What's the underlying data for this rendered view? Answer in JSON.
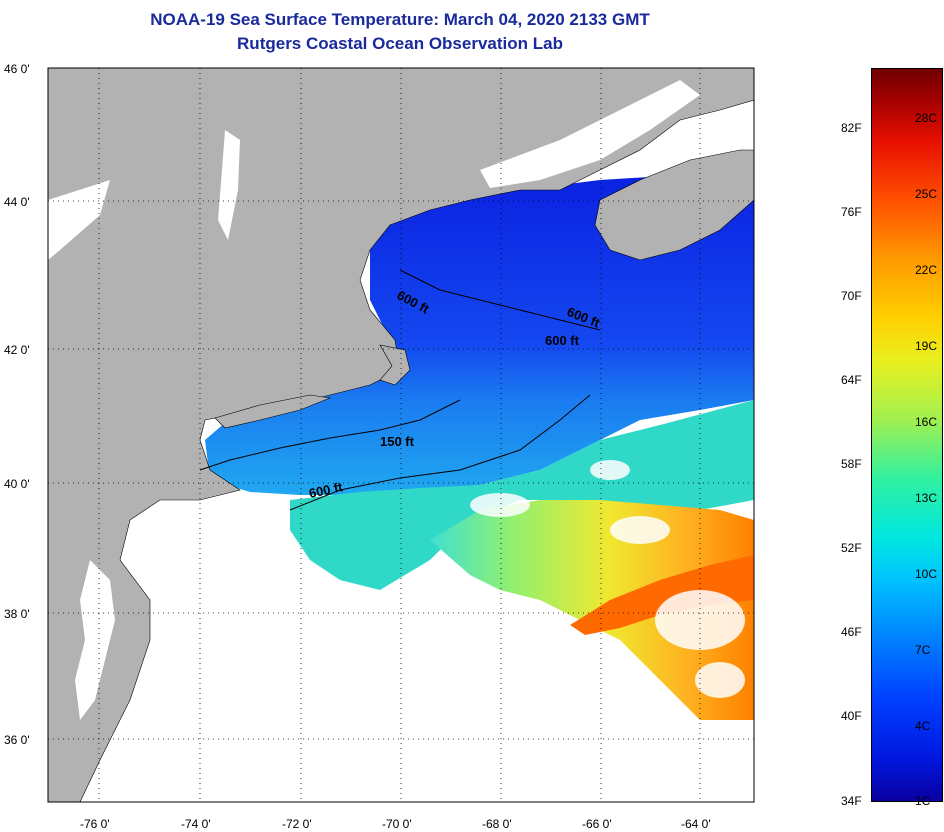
{
  "title_line1": "NOAA-19 Sea Surface Temperature:  March 04, 2020 2133 GMT",
  "title_line2": "Rutgers Coastal Ocean Observation Lab",
  "map": {
    "lat_ticks": [
      "46 0'",
      "44 0'",
      "42 0'",
      "40 0'",
      "38 0'",
      "36 0'"
    ],
    "lon_ticks": [
      "-76 0'",
      "-74 0'",
      "-72 0'",
      "-70 0'",
      "-68 0'",
      "-66 0'",
      "-64 0'"
    ],
    "contours": [
      {
        "label": "600 ft"
      },
      {
        "label": "600 ft"
      },
      {
        "label": "600 ft"
      },
      {
        "label": "150 ft"
      },
      {
        "label": "600 ft"
      }
    ],
    "colors": {
      "land": "#b2b2b2",
      "cloud": "#ffffff",
      "cold_water": "#1a30e8",
      "warm_water": "#f0c020"
    }
  },
  "colorbar": {
    "fahrenheit": [
      "82F",
      "76F",
      "70F",
      "64F",
      "58F",
      "52F",
      "46F",
      "40F",
      "34F"
    ],
    "celsius": [
      "28C",
      "25C",
      "22C",
      "19C",
      "16C",
      "13C",
      "10C",
      "7C",
      "4C",
      "1C"
    ]
  }
}
